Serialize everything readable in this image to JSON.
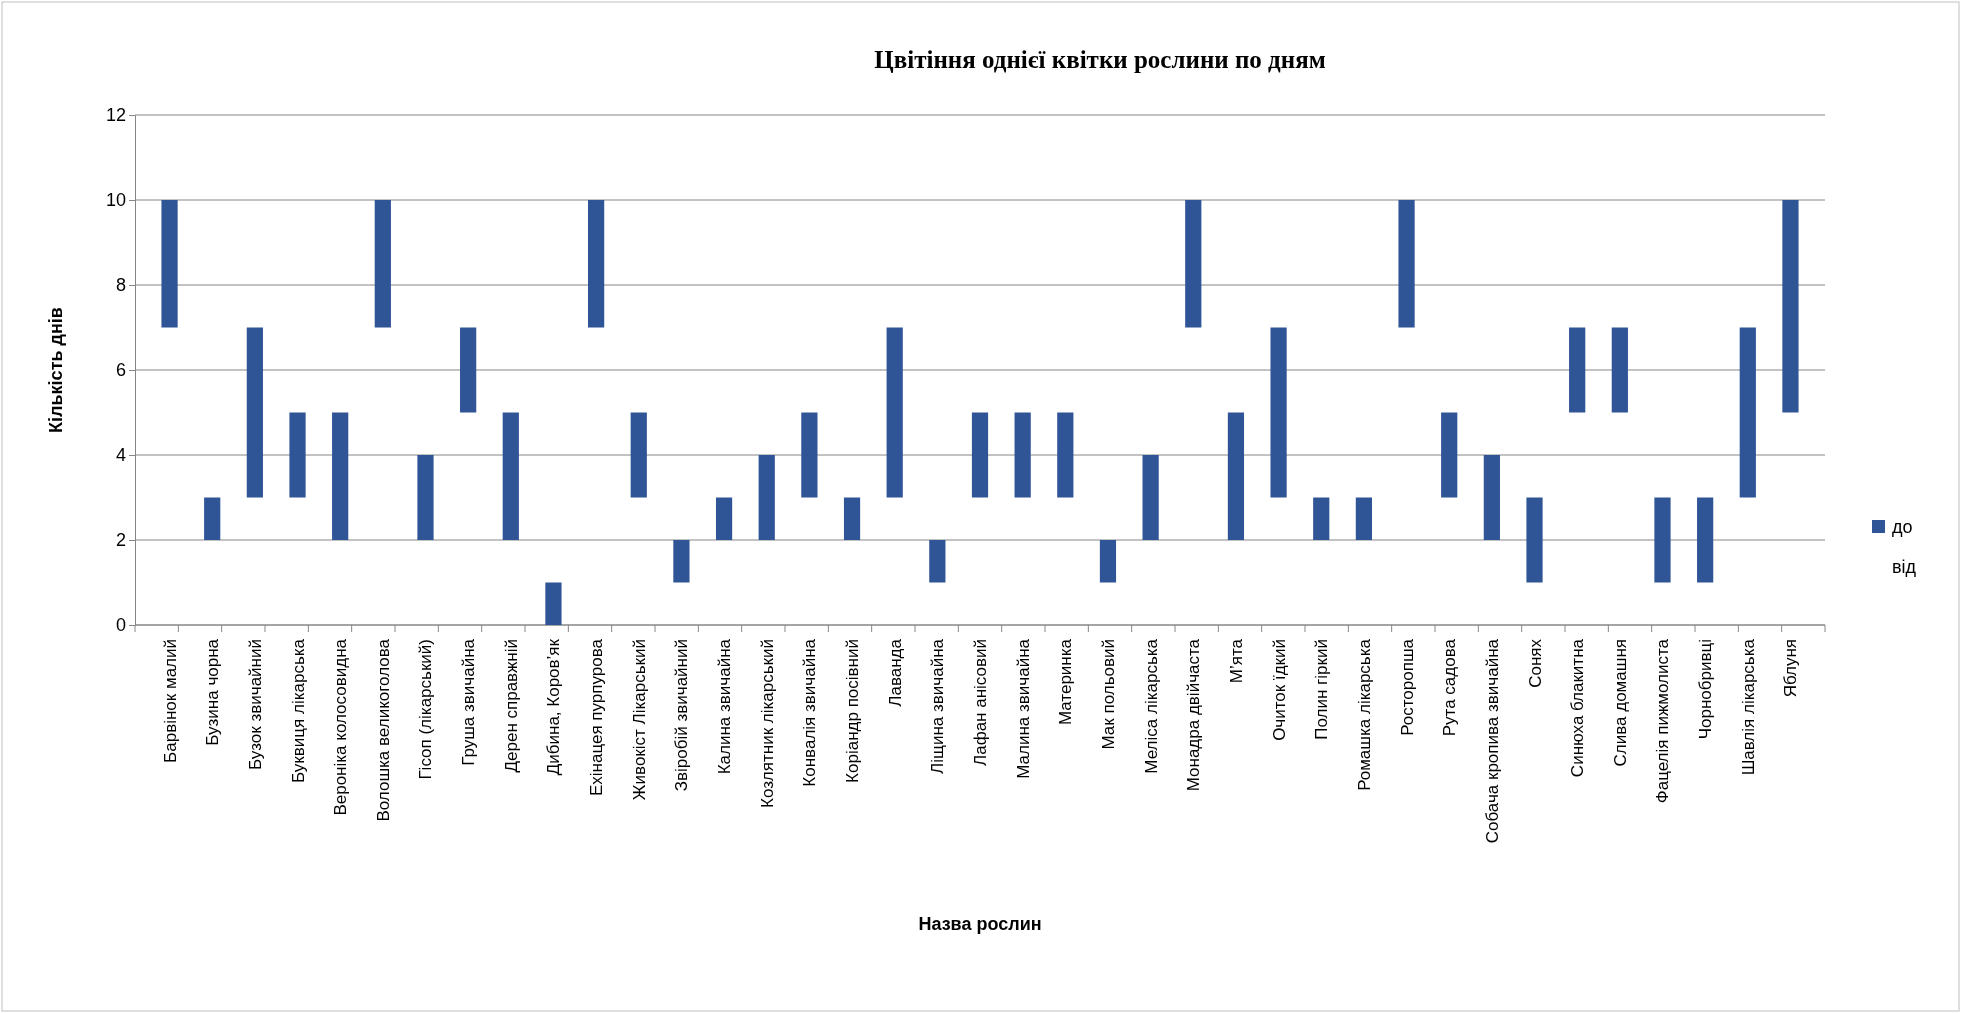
{
  "chart_data": {
    "type": "bar",
    "title": "Цвітіння однієї квітки рослини по дням",
    "xlabel": "Назва рослин",
    "ylabel": "Кількість днів",
    "categories": [
      "Барвінок малий",
      "Бузина чорна",
      "Бузок звичайний",
      "Буквиця лікарська",
      "Вероніка колосовидна",
      "Волошка великоголова",
      "Гісоп (лікарський)",
      "Груша звичайна",
      "Дерен справжній",
      "Дибина, Коров’як",
      "Ехінацея пурпурова",
      "Живокіст Лікарський",
      "Звіробій звичайний",
      "Калина звичайна",
      "Козлятник лікарський",
      "Конвалія звичайна",
      "Коріандр посівний",
      "Лаванда",
      "Ліщина звичайна",
      "Лафан анісовий",
      "Малина звичайна",
      "Материнка",
      "Мак польовий",
      "Меліса лікарська",
      "Монадра двійчаста",
      "М’ята",
      "Очиток їдкий",
      "Полин гіркий",
      "Ромашка лікарська",
      "Росторопша",
      "Рута садова",
      "Собача кропива звичайна",
      "Сонях",
      "Синюха блакитна",
      "Слива домашня",
      "Фацелія пижмолиста",
      "Чорнобривці",
      "Шавлія лікарська",
      "Яблуня"
    ],
    "series": [
      {
        "name": "до",
        "color": "#2f5597",
        "values": [
          3,
          1,
          4,
          2,
          3,
          3,
          2,
          2,
          3,
          1,
          3,
          2,
          1,
          1,
          2,
          2,
          1,
          4,
          1,
          2,
          2,
          2,
          1,
          2,
          3,
          3,
          4,
          1,
          1,
          3,
          2,
          2,
          2,
          2,
          2,
          2,
          2,
          4,
          5
        ],
        "base": [
          7,
          2,
          3,
          3,
          2,
          7,
          2,
          5,
          2,
          0,
          7,
          3,
          1,
          2,
          2,
          3,
          2,
          3,
          1,
          3,
          3,
          3,
          1,
          2,
          7,
          2,
          3,
          2,
          2,
          7,
          3,
          2,
          1,
          5,
          5,
          1,
          1,
          3,
          5
        ]
      }
    ],
    "annotations": [
      "від"
    ],
    "ylim": [
      0,
      12
    ],
    "yticks": [
      0,
      2,
      4,
      6,
      8,
      10,
      12
    ],
    "grid": "y",
    "legend": "right"
  }
}
